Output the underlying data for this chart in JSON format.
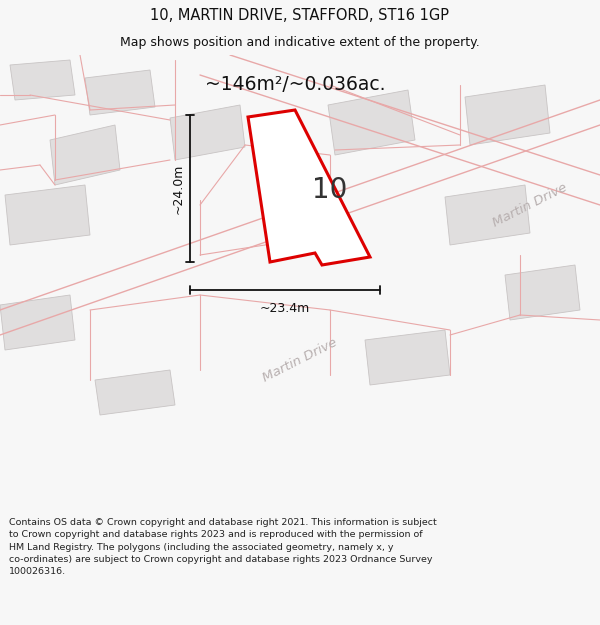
{
  "title": "10, MARTIN DRIVE, STAFFORD, ST16 1GP",
  "subtitle": "Map shows position and indicative extent of the property.",
  "area_label": "~146m²/~0.036ac.",
  "property_number": "10",
  "dim_width": "~23.4m",
  "dim_height": "~24.0m",
  "footer_line1": "Contains OS data © Crown copyright and database right 2021. This information is subject",
  "footer_line2": "to Crown copyright and database rights 2023 and is reproduced with the permission of",
  "footer_line3": "HM Land Registry. The polygons (including the associated geometry, namely x, y",
  "footer_line4": "co-ordinates) are subject to Crown copyright and database rights 2023 Ordnance Survey",
  "footer_line5": "100026316.",
  "bg_color": "#f7f7f7",
  "map_bg": "#f5f3f3",
  "property_fill": "#ffffff",
  "property_edge": "#dd0000",
  "pink_line": "#e8a8a8",
  "block_fill": "#e0dede",
  "block_edge": "#c8c4c4",
  "road_label_color": "#b8b0b0",
  "dim_color": "#111111",
  "title_color": "#111111",
  "footer_color": "#222222"
}
